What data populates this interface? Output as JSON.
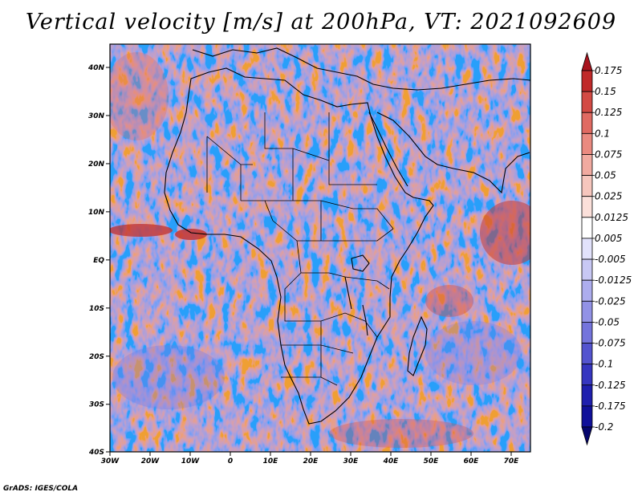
{
  "title": "Vertical velocity [m/s] at 200hPa, VT: 2021092609",
  "credit": "GrADS: IGES/COLA",
  "map": {
    "variable": "Vertical velocity",
    "units": "m/s",
    "level": "200hPa",
    "valid_time": "2021092609",
    "region": "Africa",
    "lon_labels": [
      "30W",
      "20W",
      "10W",
      "0",
      "10E",
      "20E",
      "30E",
      "40E",
      "50E",
      "60E",
      "70E"
    ],
    "lat_labels": [
      "40N",
      "30N",
      "20N",
      "10N",
      "EQ",
      "10S",
      "20S",
      "30S",
      "40S"
    ]
  },
  "colorbar": {
    "labels": [
      "0.175",
      "0.15",
      "0.125",
      "0.1",
      "0.075",
      "0.05",
      "0.025",
      "0.0125",
      "0.005",
      "-0.005",
      "-0.0125",
      "-0.025",
      "-0.05",
      "-0.075",
      "-0.1",
      "-0.125",
      "-0.175",
      "-0.2"
    ],
    "colors": [
      "#a8141e",
      "#c02a2a",
      "#d34a44",
      "#e06a62",
      "#ea8a80",
      "#f1aaa0",
      "#f6c6bd",
      "#fbe0da",
      "#ffffff",
      "#e2e2fb",
      "#c8c8f4",
      "#adadee",
      "#9292e6",
      "#7474dc",
      "#5454cf",
      "#3636c0",
      "#1f1fae",
      "#10109a",
      "#06066e"
    ]
  }
}
